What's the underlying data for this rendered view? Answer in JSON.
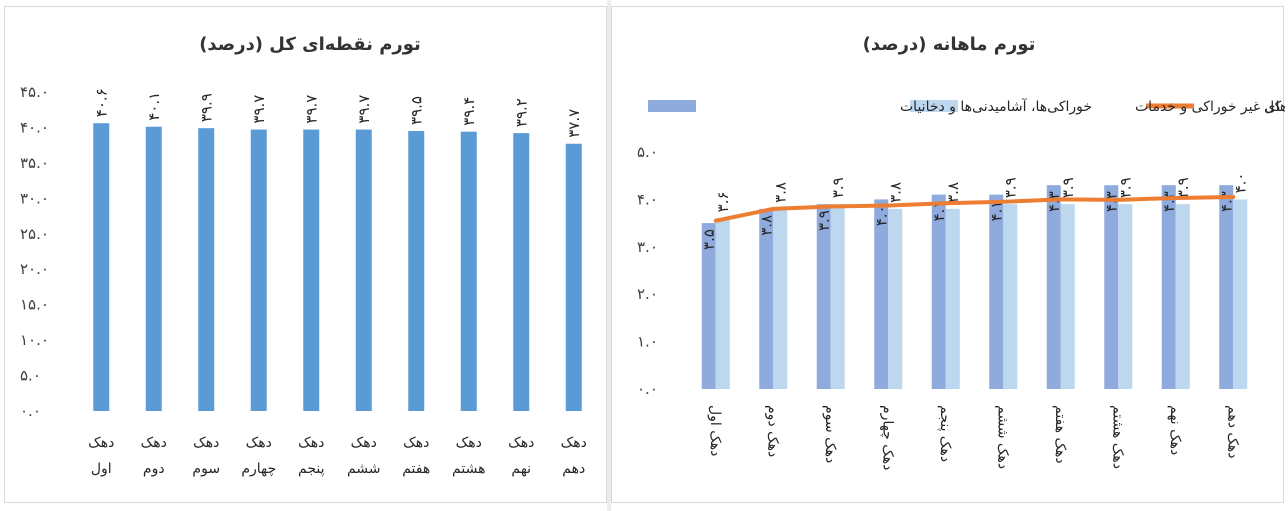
{
  "chart_data": [
    {
      "type": "bar",
      "title": "تورم نقطه‌ای کل (درصد)",
      "categories": [
        "دهک اول",
        "دهک دوم",
        "دهک سوم",
        "دهک چهارم",
        "دهک پنجم",
        "دهک ششم",
        "دهک هفتم",
        "دهک هشتم",
        "دهک نهم",
        "دهک دهم"
      ],
      "values": [
        40.6,
        40.1,
        39.9,
        39.7,
        39.7,
        39.7,
        39.5,
        39.4,
        39.2,
        37.7
      ],
      "value_labels": [
        "۴۰.۶",
        "۴۰.۱",
        "۳۹.۹",
        "۳۹.۷",
        "۳۹.۷",
        "۳۹.۷",
        "۳۹.۵",
        "۳۹.۴",
        "۳۹.۲",
        "۳۷.۷"
      ],
      "ylim": [
        0,
        45
      ],
      "yticks": [
        0,
        5,
        10,
        15,
        20,
        25,
        30,
        35,
        40,
        45
      ],
      "ytick_labels": [
        "۰.۰",
        "۵.۰",
        "۱۰.۰",
        "۱۵.۰",
        "۲۰.۰",
        "۲۵.۰",
        "۳۰.۰",
        "۳۵.۰",
        "۴۰.۰",
        "۴۵.۰"
      ],
      "xlabel": "",
      "ylabel": "",
      "color": "#5b9bd5",
      "grid": false
    },
    {
      "type": "bar",
      "title": "تورم ماهانه (درصد)",
      "categories": [
        "دهک اول",
        "دهک دوم",
        "دهک سوم",
        "دهک چهارم",
        "دهک پنجم",
        "دهک ششم",
        "دهک هفتم",
        "دهک هشتم",
        "دهک نهم",
        "دهک دهم"
      ],
      "series": [
        {
          "name": "خوراکی‌ها، آشامیدنی‌ها و دخانیات",
          "kind": "bar",
          "color": "#8faadc",
          "values": [
            3.5,
            3.8,
            3.9,
            4.0,
            4.1,
            4.1,
            4.3,
            4.3,
            4.3,
            4.3
          ],
          "labels": [
            "۳.۵",
            "۳.۸",
            "۳.۹",
            "۴.۰",
            "۴.۱",
            "۴.۱",
            "۴.۳",
            "۴.۳",
            "۴.۳",
            "۴.۳"
          ]
        },
        {
          "name": "کالاهای غیر خوراکی و خدمات",
          "kind": "bar",
          "color": "#bdd7ee",
          "values": [
            3.6,
            3.8,
            3.9,
            3.8,
            3.8,
            3.9,
            3.9,
            3.9,
            3.9,
            4.0
          ],
          "labels": [
            "۳.۶",
            "۳.۸",
            "۳.۹",
            "۳.۸",
            "۳.۸",
            "۳.۹",
            "۳.۹",
            "۳.۹",
            "۳.۹",
            "۴.۰"
          ]
        },
        {
          "name": "شاخص کل",
          "kind": "line",
          "color": "#ed7d31",
          "values": [
            3.55,
            3.8,
            3.85,
            3.87,
            3.92,
            3.95,
            4.0,
            3.99,
            4.03,
            4.05
          ]
        }
      ],
      "ylim": [
        0,
        5
      ],
      "yticks": [
        0,
        1,
        2,
        3,
        4,
        5
      ],
      "ytick_labels": [
        "۰.۰",
        "۱.۰",
        "۲.۰",
        "۳.۰",
        "۴.۰",
        "۵.۰"
      ],
      "xlabel": "",
      "ylabel": "",
      "legend": "top",
      "grid": false
    }
  ]
}
